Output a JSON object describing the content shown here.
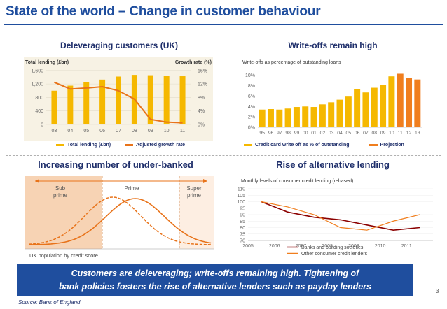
{
  "title": "State of the world – Change in customer behaviour",
  "quadrants": {
    "q1_title": "Deleveraging customers (UK)",
    "q2_title": "Write-offs remain high",
    "q3_title": "Increasing number of under-banked",
    "q4_title": "Rise of alternative lending"
  },
  "callout": {
    "line1": "Customers are deleveraging; write-offs remaining high. Tightening of",
    "line2": "bank policies fosters the rise of alternative lenders such as payday lenders"
  },
  "source": "Source: Bank of England",
  "page_number": "3",
  "colors": {
    "brand_blue": "#1f4e9e",
    "bar_yellow": "#f5b800",
    "line_orange": "#e8731a",
    "projection_orange": "#f07e1e",
    "light_orange_fill": "#f7d3b4"
  },
  "chart_data": [
    {
      "type": "bar",
      "title": "Deleveraging customers (UK)",
      "ylabel": "Total lending (£bn)",
      "y2label": "Growth rate (%)",
      "categories": [
        "03",
        "04",
        "05",
        "06",
        "07",
        "08",
        "09",
        "10",
        "11"
      ],
      "yticks": [
        "0",
        "400",
        "800",
        "1,200",
        "1,600"
      ],
      "y2ticks": [
        "0%",
        "4%",
        "8%",
        "12%",
        "16%"
      ],
      "ylim": [
        0,
        1700
      ],
      "y2lim": [
        0,
        17
      ],
      "series": [
        {
          "name": "Total lending (£bn)",
          "type": "bar",
          "values": [
            1000,
            1150,
            1250,
            1330,
            1420,
            1470,
            1460,
            1440,
            1430
          ]
        },
        {
          "name": "Adjusted growth rate",
          "type": "line",
          "axis": "right",
          "values": [
            12.5,
            10.5,
            10.8,
            11.2,
            10.0,
            7.5,
            1.5,
            0.7,
            0.5
          ]
        }
      ],
      "grid": true
    },
    {
      "type": "bar",
      "title": "Write-offs remain high",
      "subtitle": "Write-offs as percentage of outstanding loans",
      "categories": [
        "95",
        "96",
        "97",
        "98",
        "99",
        "00",
        "01",
        "02",
        "03",
        "04",
        "05",
        "06",
        "07",
        "08",
        "09",
        "10",
        "11",
        "12",
        "13"
      ],
      "yticks": [
        "0%",
        "2%",
        "4%",
        "6%",
        "8%",
        "10%"
      ],
      "ylim": [
        0,
        10.5
      ],
      "series": [
        {
          "name": "Credit card write off as % of outstanding",
          "values": [
            3.4,
            3.5,
            3.4,
            3.6,
            3.9,
            4.0,
            3.9,
            4.4,
            4.8,
            5.3,
            5.9,
            7.4,
            6.7,
            7.6,
            8.2,
            9.8,
            10.3,
            9.5,
            9.2
          ]
        }
      ],
      "projection_from": "11",
      "projection_label": "Projection"
    },
    {
      "type": "area",
      "title": "Increasing number of under-banked",
      "segments": [
        "Sub prime",
        "Prime",
        "Super prime"
      ],
      "xlabel": "UK population by credit score"
    },
    {
      "type": "line",
      "title": "Rise of alternative lending",
      "subtitle": "Monthly levels of consumer credit lending (rebased)",
      "categories": [
        "2005",
        "2006",
        "2007",
        "2008",
        "2009",
        "2010",
        "2011"
      ],
      "yticks": [
        "70",
        "75",
        "80",
        "85",
        "90",
        "95",
        "100",
        "105",
        "110"
      ],
      "ylim": [
        70,
        110
      ],
      "series": [
        {
          "name": "Banks and building societies",
          "values": [
            100,
            92,
            88,
            86,
            82,
            78,
            80
          ]
        },
        {
          "name": "Other consumer credit lenders",
          "values": [
            100,
            96,
            90,
            80,
            78,
            85,
            90
          ]
        }
      ]
    }
  ]
}
